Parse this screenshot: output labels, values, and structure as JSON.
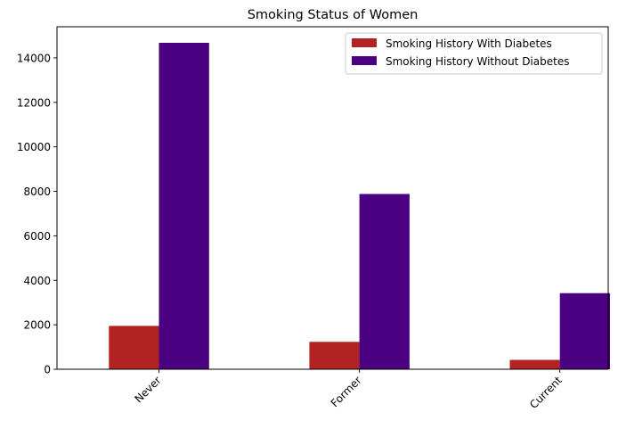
{
  "chart_data": {
    "type": "bar",
    "title": "Smoking Status of Women",
    "xlabel": "",
    "ylabel": "",
    "categories": [
      "Never",
      "Former",
      "Current"
    ],
    "series": [
      {
        "name": "Smoking History With Diabetes",
        "color": "#b22222",
        "values": [
          1950,
          1230,
          420
        ]
      },
      {
        "name": "Smoking History Without Diabetes",
        "color": "#4b0082",
        "values": [
          14680,
          7880,
          3420
        ]
      }
    ],
    "ylim": [
      0,
      15400
    ],
    "yticks": [
      0,
      2000,
      4000,
      6000,
      8000,
      10000,
      12000,
      14000
    ],
    "grid": false,
    "legend": "top-right"
  }
}
